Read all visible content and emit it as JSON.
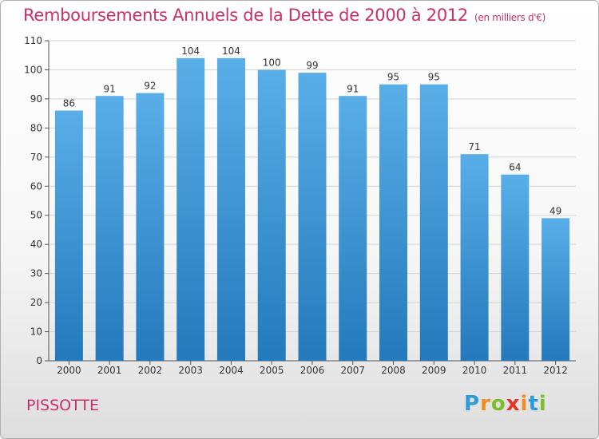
{
  "title": "Remboursements Annuels de la Dette de 2000 à 2012",
  "subtitle": "(en milliers d'€)",
  "commune": "PISSOTTE",
  "logo": {
    "text": "Proxiti",
    "letters": [
      "P",
      "r",
      "o",
      "x",
      "i",
      "t",
      "i"
    ],
    "colors": [
      "#2e9ad6",
      "#f28c1e",
      "#7cbf2a",
      "#e8332b",
      "#f28c1e",
      "#2e9ad6",
      "#7cbf2a"
    ]
  },
  "colors": {
    "accent": "#c8306a",
    "bar_top": "#5aaee8",
    "bar_bottom": "#2379bb"
  },
  "chart_data": {
    "type": "bar",
    "title": "Remboursements Annuels de la Dette de 2000 à 2012",
    "xlabel": "",
    "ylabel": "",
    "categories": [
      "2000",
      "2001",
      "2002",
      "2003",
      "2004",
      "2005",
      "2006",
      "2007",
      "2008",
      "2009",
      "2010",
      "2011",
      "2012"
    ],
    "values": [
      86,
      91,
      92,
      104,
      104,
      100,
      99,
      91,
      95,
      95,
      71,
      64,
      49
    ],
    "ylim": [
      0,
      110
    ],
    "yticks": [
      0,
      10,
      20,
      30,
      40,
      50,
      60,
      70,
      80,
      90,
      100,
      110
    ],
    "grid": true
  }
}
